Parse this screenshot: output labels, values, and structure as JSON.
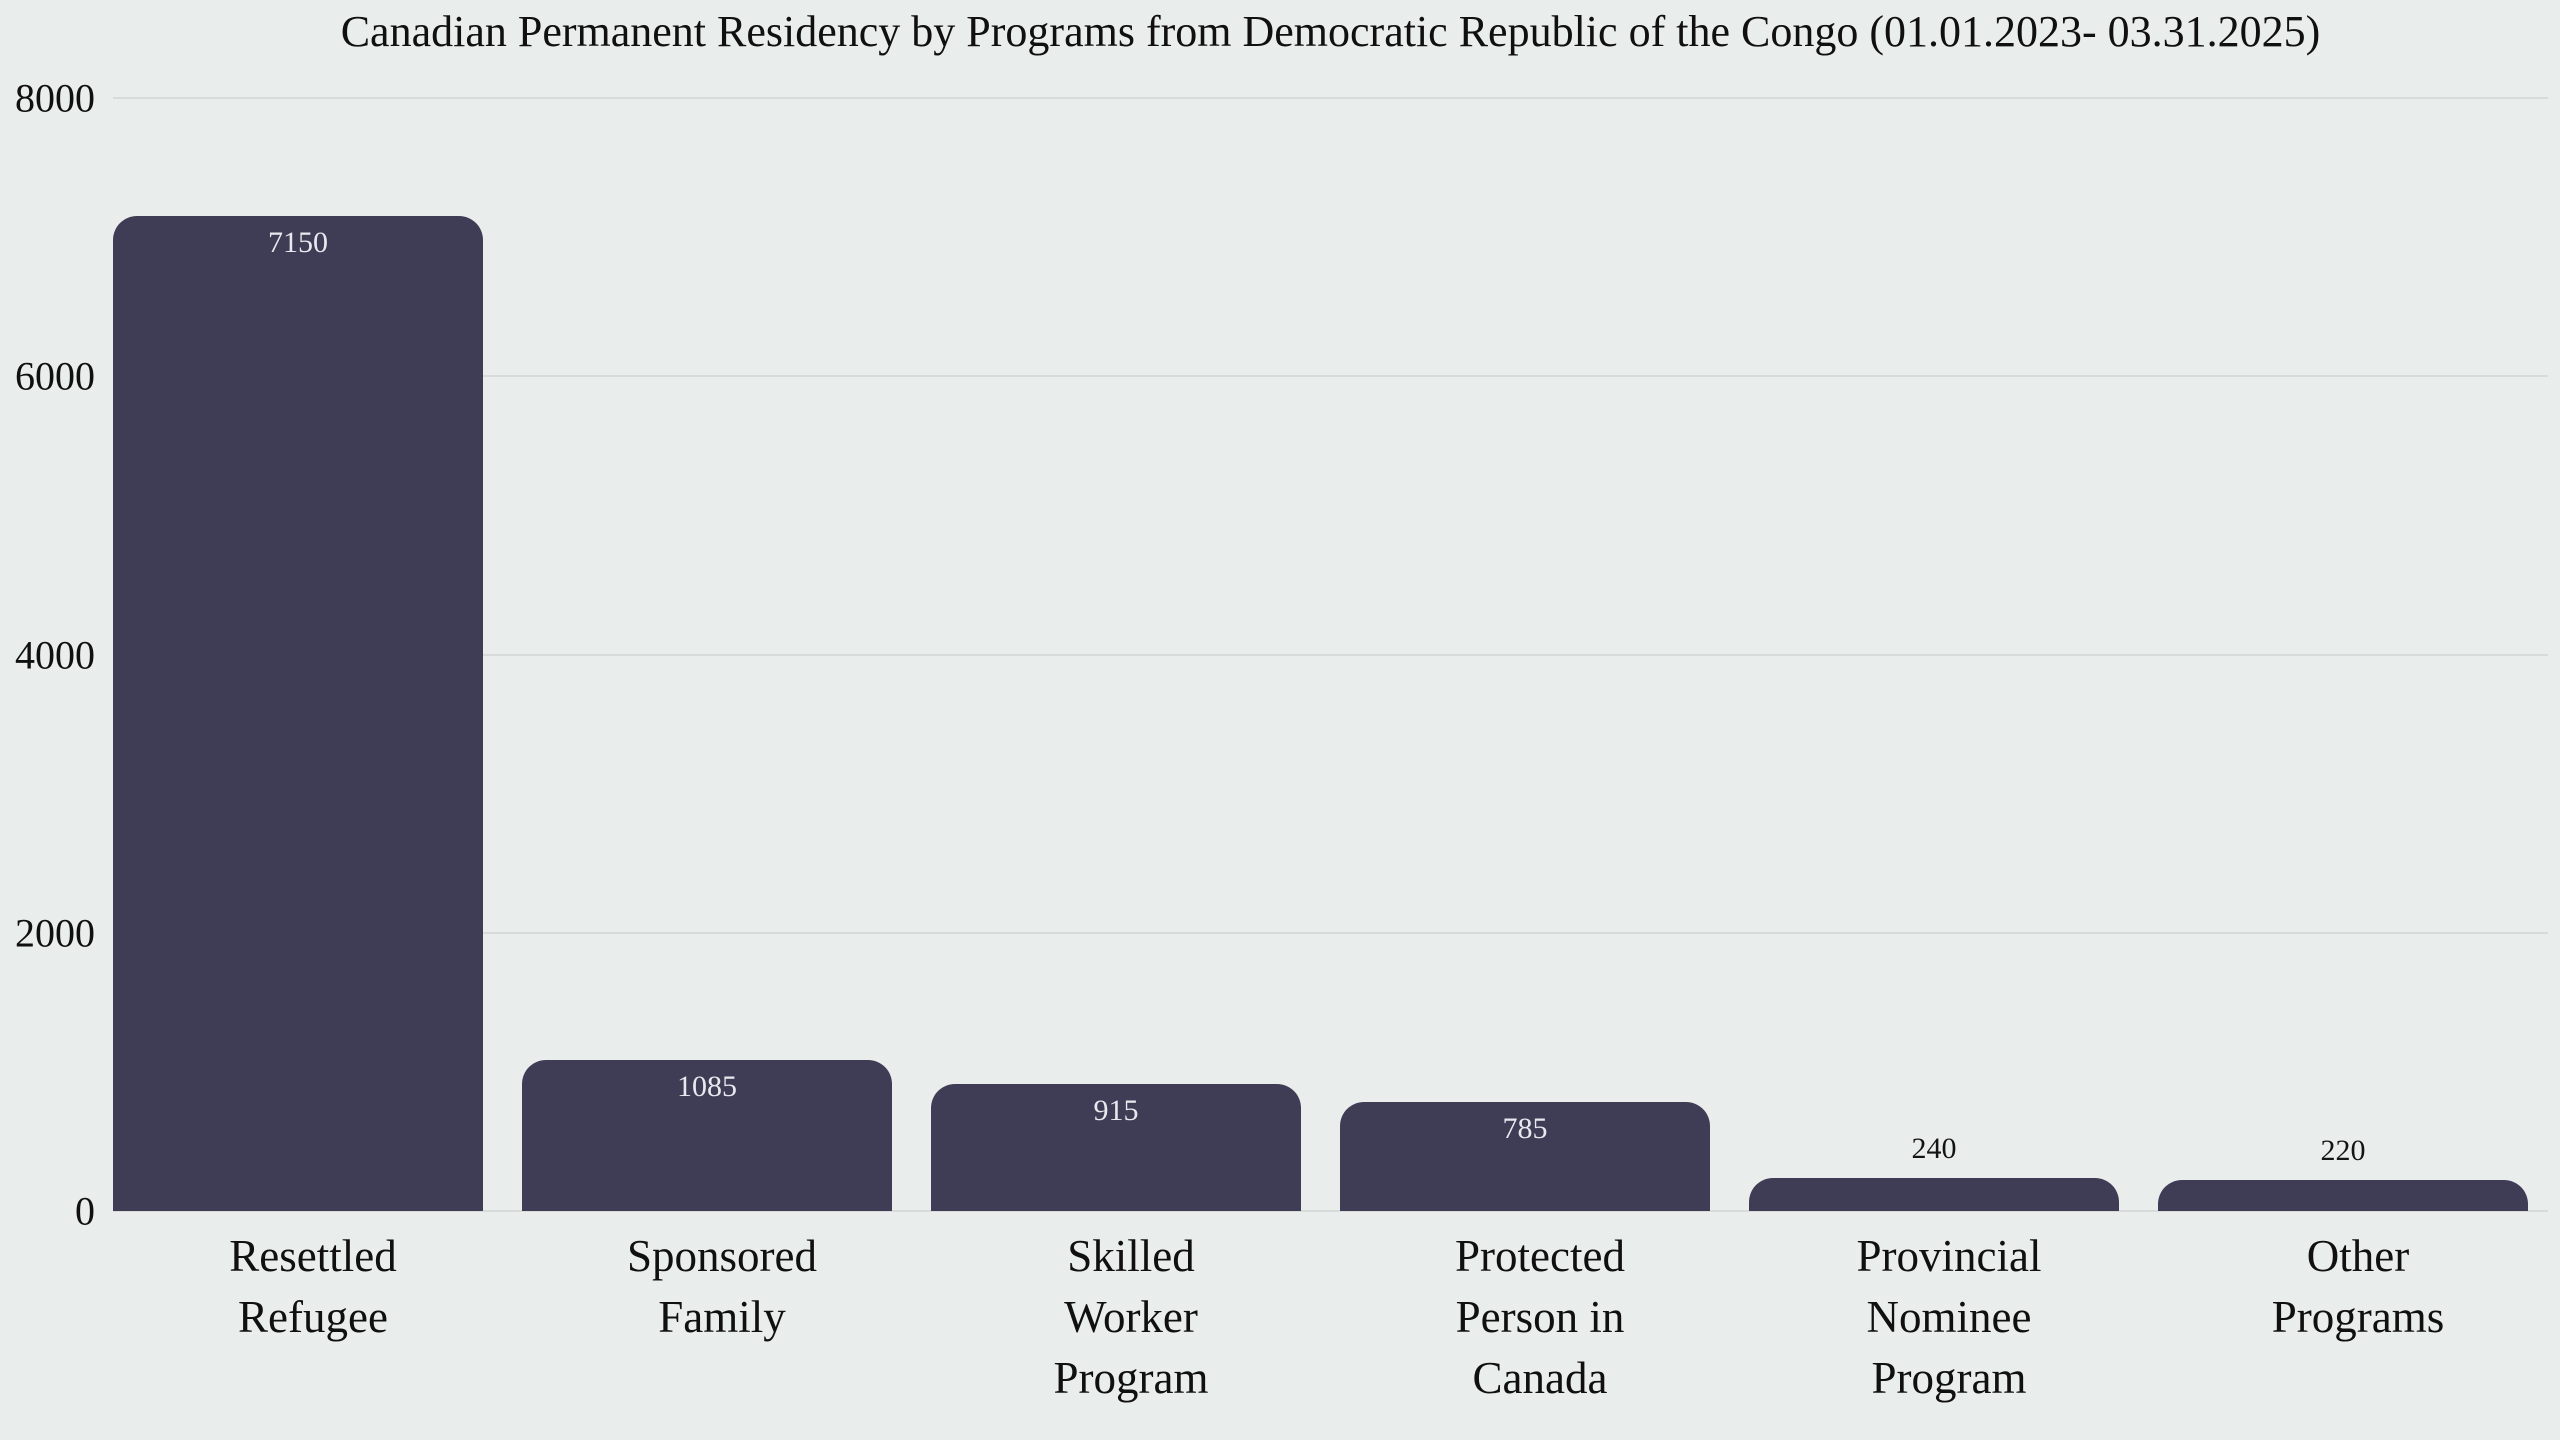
{
  "chart_data": {
    "type": "bar",
    "title": "Canadian Permanent Residency by Programs from Democratic Republic of the Congo (01.01.2023- 03.31.2025)",
    "categories": [
      "Resettled\nRefugee",
      "Sponsored\nFamily",
      "Skilled\nWorker\nProgram",
      "Protected\nPerson in\nCanada",
      "Provincial\nNominee\nProgram",
      "Other\nPrograms"
    ],
    "values": [
      7150,
      1085,
      915,
      785,
      240,
      220
    ],
    "value_labels": [
      "7150",
      "1085",
      "915",
      "785",
      "240",
      "220"
    ],
    "yticks": [
      "0",
      "2000",
      "4000",
      "6000",
      "8000"
    ],
    "ytick_values": [
      0,
      2000,
      4000,
      6000,
      8000
    ],
    "ylim": [
      0,
      8000
    ],
    "grid": true,
    "legend": false,
    "xlabel": "",
    "ylabel": "",
    "colors": {
      "background": "#e9edec",
      "bar": "#3f3c56",
      "gridline": "#d7dbda",
      "tick_text": "#101010",
      "value_inside": "#e9e8ee",
      "value_outside": "#141414"
    }
  }
}
